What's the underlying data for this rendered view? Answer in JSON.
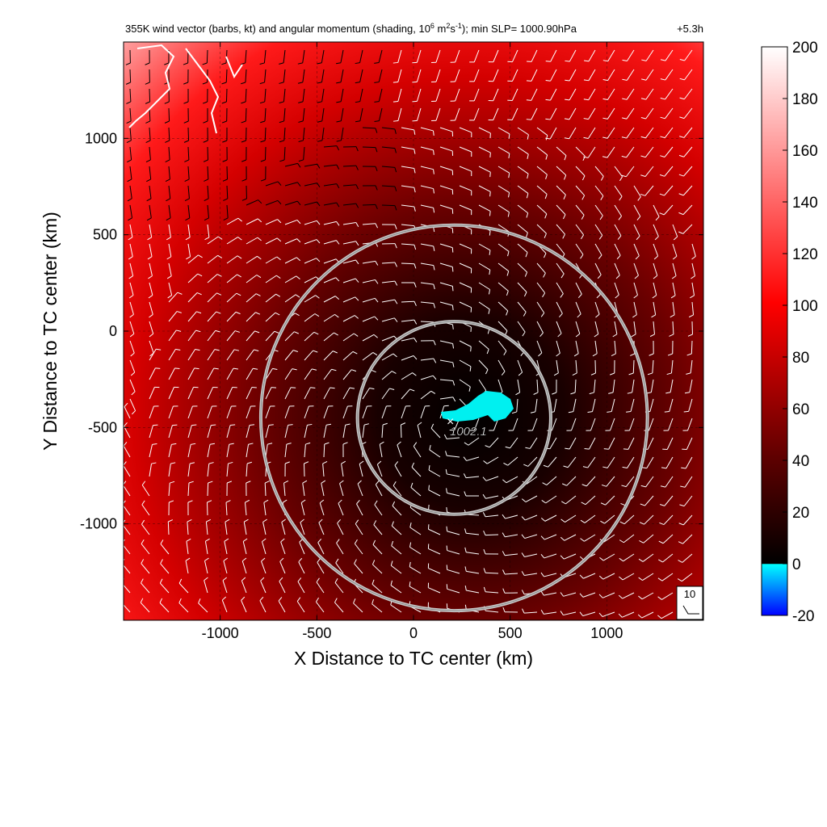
{
  "chart_data": {
    "type": "heatmap",
    "title": "355K wind vector (barbs, kt) and angular momentum (shading, 10",
    "title_exp1": "6",
    "title_mid": " m",
    "title_exp2": "2",
    "title_mid2": "s",
    "title_exp3": "-1",
    "title_end": "); min SLP= 1000.90hPa",
    "forecast_time": "+5.3h",
    "xlabel": "X Distance to TC center (km)",
    "ylabel": "Y Distance to TC center (km)",
    "xlim": [
      -1500,
      1500
    ],
    "ylim": [
      -1500,
      1500
    ],
    "x_ticks": [
      -1000,
      -500,
      0,
      500,
      1000
    ],
    "x_tick_labels": [
      "-1000",
      "-500",
      "0",
      "500",
      "1000"
    ],
    "y_ticks": [
      1000,
      500,
      0,
      -500,
      -1000
    ],
    "y_tick_labels": [
      "1000",
      "500",
      "0",
      "-500",
      "-1000"
    ],
    "grid": true,
    "colorbar": {
      "range": [
        -20,
        200
      ],
      "ticks": [
        200,
        180,
        160,
        140,
        120,
        100,
        80,
        60,
        40,
        20,
        0,
        -20
      ],
      "tick_labels": [
        "200",
        "180",
        "160",
        "140",
        "120",
        "100",
        "80",
        "60",
        "40",
        "20",
        "0",
        "-20"
      ],
      "colors": {
        "min": "#0000ff",
        "zero": "#00ffff",
        "dark": "#000000",
        "mid": "#ff0000",
        "max": "#ffffff"
      }
    },
    "field_minimum": {
      "x": 300,
      "y": -430
    },
    "center_marker": {
      "x": 190,
      "y": -450,
      "label": "1002.1"
    },
    "rings": [
      {
        "center_x": 210,
        "center_y": -450,
        "radius_km": 500
      },
      {
        "center_x": 210,
        "center_y": -450,
        "radius_km": 1000
      }
    ],
    "reference_barb": {
      "label": "10"
    },
    "low_momentum_blob": {
      "x_range": [
        150,
        550
      ],
      "y_range": [
        -520,
        -320
      ],
      "value": 0
    }
  }
}
